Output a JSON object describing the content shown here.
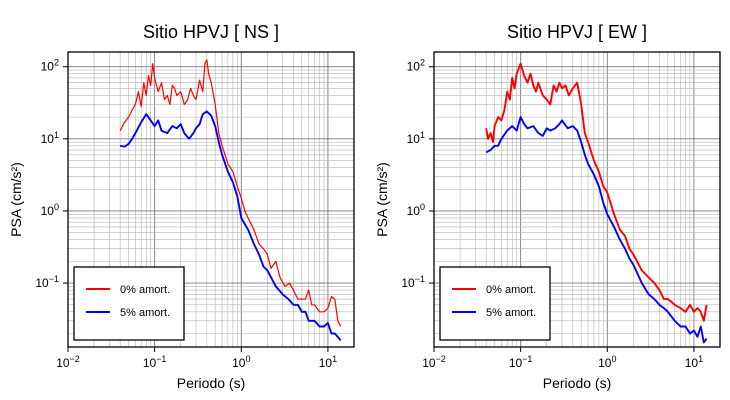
{
  "chart_data": [
    {
      "type": "line",
      "title": "Sitio HPVJ [ NS ]",
      "xlabel": "Periodo (s)",
      "ylabel": "PSA (cm/s²)",
      "xscale": "log",
      "yscale": "log",
      "xlim": [
        0.01,
        20
      ],
      "ylim": [
        0.013,
        160
      ],
      "grid": true,
      "legend_position": "bottom-left",
      "x_ticks": [
        {
          "base": "10",
          "exp": "−2"
        },
        {
          "base": "10",
          "exp": "−1"
        },
        {
          "base": "10",
          "exp": "0"
        },
        {
          "base": "10",
          "exp": "1"
        }
      ],
      "y_ticks": [
        {
          "base": "10",
          "exp": "−1"
        },
        {
          "base": "10",
          "exp": "0"
        },
        {
          "base": "10",
          "exp": "1"
        },
        {
          "base": "10",
          "exp": "2"
        }
      ],
      "series": [
        {
          "name": "0% amort.",
          "color": "#ff0000",
          "x": [
            0.04,
            0.045,
            0.05,
            0.055,
            0.06,
            0.065,
            0.07,
            0.075,
            0.08,
            0.085,
            0.09,
            0.095,
            0.1,
            0.11,
            0.12,
            0.13,
            0.14,
            0.15,
            0.16,
            0.17,
            0.18,
            0.2,
            0.22,
            0.24,
            0.26,
            0.28,
            0.3,
            0.33,
            0.36,
            0.38,
            0.4,
            0.42,
            0.45,
            0.5,
            0.55,
            0.6,
            0.7,
            0.8,
            0.9,
            1.0,
            1.1,
            1.2,
            1.4,
            1.6,
            1.8,
            2.0,
            2.2,
            2.5,
            2.8,
            3.2,
            3.6,
            4.0,
            4.5,
            5.0,
            5.5,
            6.0,
            6.5,
            7.0,
            8.0,
            9.0,
            10.0,
            11.0,
            12.0,
            13.0,
            14.0
          ],
          "y": [
            13,
            17,
            20,
            25,
            30,
            45,
            28,
            60,
            40,
            75,
            55,
            110,
            70,
            45,
            60,
            35,
            40,
            30,
            55,
            50,
            40,
            45,
            30,
            35,
            50,
            40,
            35,
            65,
            45,
            110,
            125,
            80,
            60,
            30,
            12,
            8,
            4.5,
            3.5,
            2.2,
            1.5,
            1.0,
            0.8,
            0.55,
            0.35,
            0.3,
            0.25,
            0.16,
            0.2,
            0.12,
            0.09,
            0.1,
            0.08,
            0.06,
            0.06,
            0.06,
            0.08,
            0.05,
            0.05,
            0.04,
            0.04,
            0.045,
            0.065,
            0.06,
            0.03,
            0.025
          ]
        },
        {
          "name": "5% amort.",
          "color": "#0000ff",
          "x": [
            0.04,
            0.045,
            0.05,
            0.055,
            0.06,
            0.07,
            0.08,
            0.09,
            0.1,
            0.11,
            0.12,
            0.14,
            0.16,
            0.18,
            0.2,
            0.22,
            0.25,
            0.28,
            0.3,
            0.33,
            0.36,
            0.4,
            0.45,
            0.5,
            0.55,
            0.6,
            0.7,
            0.8,
            0.9,
            1.0,
            1.2,
            1.4,
            1.6,
            1.8,
            2.0,
            2.5,
            3.0,
            3.5,
            4.0,
            4.5,
            5.0,
            5.5,
            6.0,
            7.0,
            8.0,
            9.0,
            10.0,
            11.0,
            12.0,
            13.0,
            14.0
          ],
          "y": [
            8,
            7.8,
            8.5,
            10,
            12,
            17,
            22,
            18,
            15,
            18,
            13,
            12,
            15,
            14,
            16,
            12,
            10,
            12,
            14,
            16,
            22,
            24,
            21,
            15,
            9,
            6,
            3.5,
            2.5,
            1.6,
            0.8,
            0.55,
            0.35,
            0.25,
            0.17,
            0.15,
            0.09,
            0.07,
            0.06,
            0.05,
            0.05,
            0.04,
            0.04,
            0.03,
            0.03,
            0.025,
            0.025,
            0.028,
            0.02,
            0.02,
            0.018,
            0.016
          ]
        }
      ]
    },
    {
      "type": "line",
      "title": "Sitio HPVJ [ EW ]",
      "xlabel": "Periodo (s)",
      "ylabel": "PSA (cm/s²)",
      "xscale": "log",
      "yscale": "log",
      "xlim": [
        0.01,
        20
      ],
      "ylim": [
        0.013,
        160
      ],
      "grid": true,
      "legend_position": "bottom-left",
      "x_ticks": [
        {
          "base": "10",
          "exp": "−2"
        },
        {
          "base": "10",
          "exp": "−1"
        },
        {
          "base": "10",
          "exp": "0"
        },
        {
          "base": "10",
          "exp": "1"
        }
      ],
      "y_ticks": [
        {
          "base": "10",
          "exp": "−1"
        },
        {
          "base": "10",
          "exp": "0"
        },
        {
          "base": "10",
          "exp": "1"
        },
        {
          "base": "10",
          "exp": "2"
        }
      ],
      "series": [
        {
          "name": "0% amort.",
          "color": "#ff0000",
          "x": [
            0.04,
            0.042,
            0.045,
            0.048,
            0.05,
            0.055,
            0.06,
            0.065,
            0.07,
            0.075,
            0.08,
            0.085,
            0.09,
            0.1,
            0.11,
            0.12,
            0.13,
            0.14,
            0.15,
            0.16,
            0.18,
            0.2,
            0.22,
            0.24,
            0.26,
            0.28,
            0.3,
            0.33,
            0.36,
            0.4,
            0.45,
            0.5,
            0.55,
            0.6,
            0.7,
            0.8,
            0.9,
            1.0,
            1.2,
            1.4,
            1.6,
            1.8,
            2.0,
            2.5,
            3.0,
            3.5,
            4.0,
            4.5,
            5.0,
            5.5,
            6.0,
            7.0,
            8.0,
            9.0,
            10.0,
            11.0,
            12.0,
            13.0,
            14.0
          ],
          "y": [
            14,
            10,
            12,
            9,
            15,
            20,
            18,
            25,
            45,
            35,
            70,
            50,
            80,
            110,
            75,
            60,
            80,
            55,
            45,
            60,
            40,
            35,
            30,
            55,
            45,
            60,
            50,
            55,
            40,
            50,
            60,
            30,
            12,
            9,
            5,
            3.5,
            2.2,
            1.8,
            0.9,
            0.55,
            0.45,
            0.3,
            0.25,
            0.15,
            0.12,
            0.1,
            0.08,
            0.06,
            0.06,
            0.055,
            0.05,
            0.045,
            0.04,
            0.05,
            0.04,
            0.045,
            0.04,
            0.03,
            0.05
          ]
        },
        {
          "name": "5% amort.",
          "color": "#0000ff",
          "x": [
            0.04,
            0.045,
            0.05,
            0.055,
            0.06,
            0.07,
            0.08,
            0.09,
            0.1,
            0.11,
            0.12,
            0.14,
            0.16,
            0.18,
            0.2,
            0.22,
            0.25,
            0.28,
            0.3,
            0.35,
            0.4,
            0.45,
            0.5,
            0.55,
            0.6,
            0.7,
            0.8,
            0.9,
            1.0,
            1.2,
            1.4,
            1.6,
            1.8,
            2.0,
            2.5,
            3.0,
            3.5,
            4.0,
            4.5,
            5.0,
            6.0,
            7.0,
            8.0,
            9.0,
            10.0,
            11.0,
            12.0,
            13.0,
            14.0
          ],
          "y": [
            6.5,
            7,
            8,
            8,
            10,
            13,
            15,
            13,
            20,
            16,
            14,
            15,
            12,
            11,
            14,
            13,
            14,
            16,
            18,
            14,
            15,
            13,
            9,
            6,
            4.5,
            3.2,
            2.2,
            1.3,
            0.9,
            0.6,
            0.4,
            0.3,
            0.22,
            0.18,
            0.1,
            0.07,
            0.06,
            0.05,
            0.045,
            0.04,
            0.03,
            0.025,
            0.025,
            0.02,
            0.022,
            0.018,
            0.025,
            0.015,
            0.017
          ]
        }
      ]
    }
  ]
}
